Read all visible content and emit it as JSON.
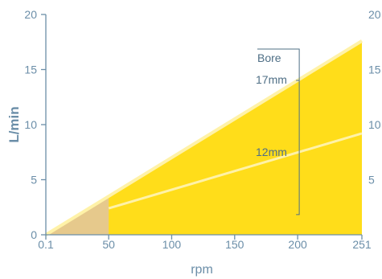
{
  "chart_data": {
    "type": "area",
    "xlabel": "rpm",
    "ylabel": "L/min",
    "xlim": [
      0.1,
      251
    ],
    "ylim": [
      0,
      20
    ],
    "x_ticks": [
      {
        "value": 0.1,
        "label": "0.1"
      },
      {
        "value": 50,
        "label": "50"
      },
      {
        "value": 100,
        "label": "100"
      },
      {
        "value": 150,
        "label": "150"
      },
      {
        "value": 200,
        "label": "200"
      },
      {
        "value": 251,
        "label": "251"
      }
    ],
    "y_ticks": [
      0,
      5,
      10,
      15,
      20
    ],
    "right_y_ticks": [
      5,
      10,
      15,
      20
    ],
    "grid": false,
    "series": [
      {
        "name": "17mm",
        "x": [
          0.1,
          251
        ],
        "values": [
          0.0,
          17.6
        ]
      },
      {
        "name": "12mm",
        "x": [
          0.1,
          50,
          251
        ],
        "values": [
          0.0,
          2.4,
          9.2
        ]
      }
    ],
    "low_speed_region": {
      "x": [
        0.1,
        50
      ],
      "values": [
        0.0,
        3.5
      ]
    },
    "annotation": {
      "title": "Bore",
      "labels": [
        "17mm",
        "12mm"
      ]
    },
    "colors": {
      "fill": "#ffdd1a",
      "low_speed_fill": "#e6c98c",
      "line": "#fff2a8",
      "axis": "#6b8ea8",
      "annotation": "#4f6f86"
    }
  }
}
